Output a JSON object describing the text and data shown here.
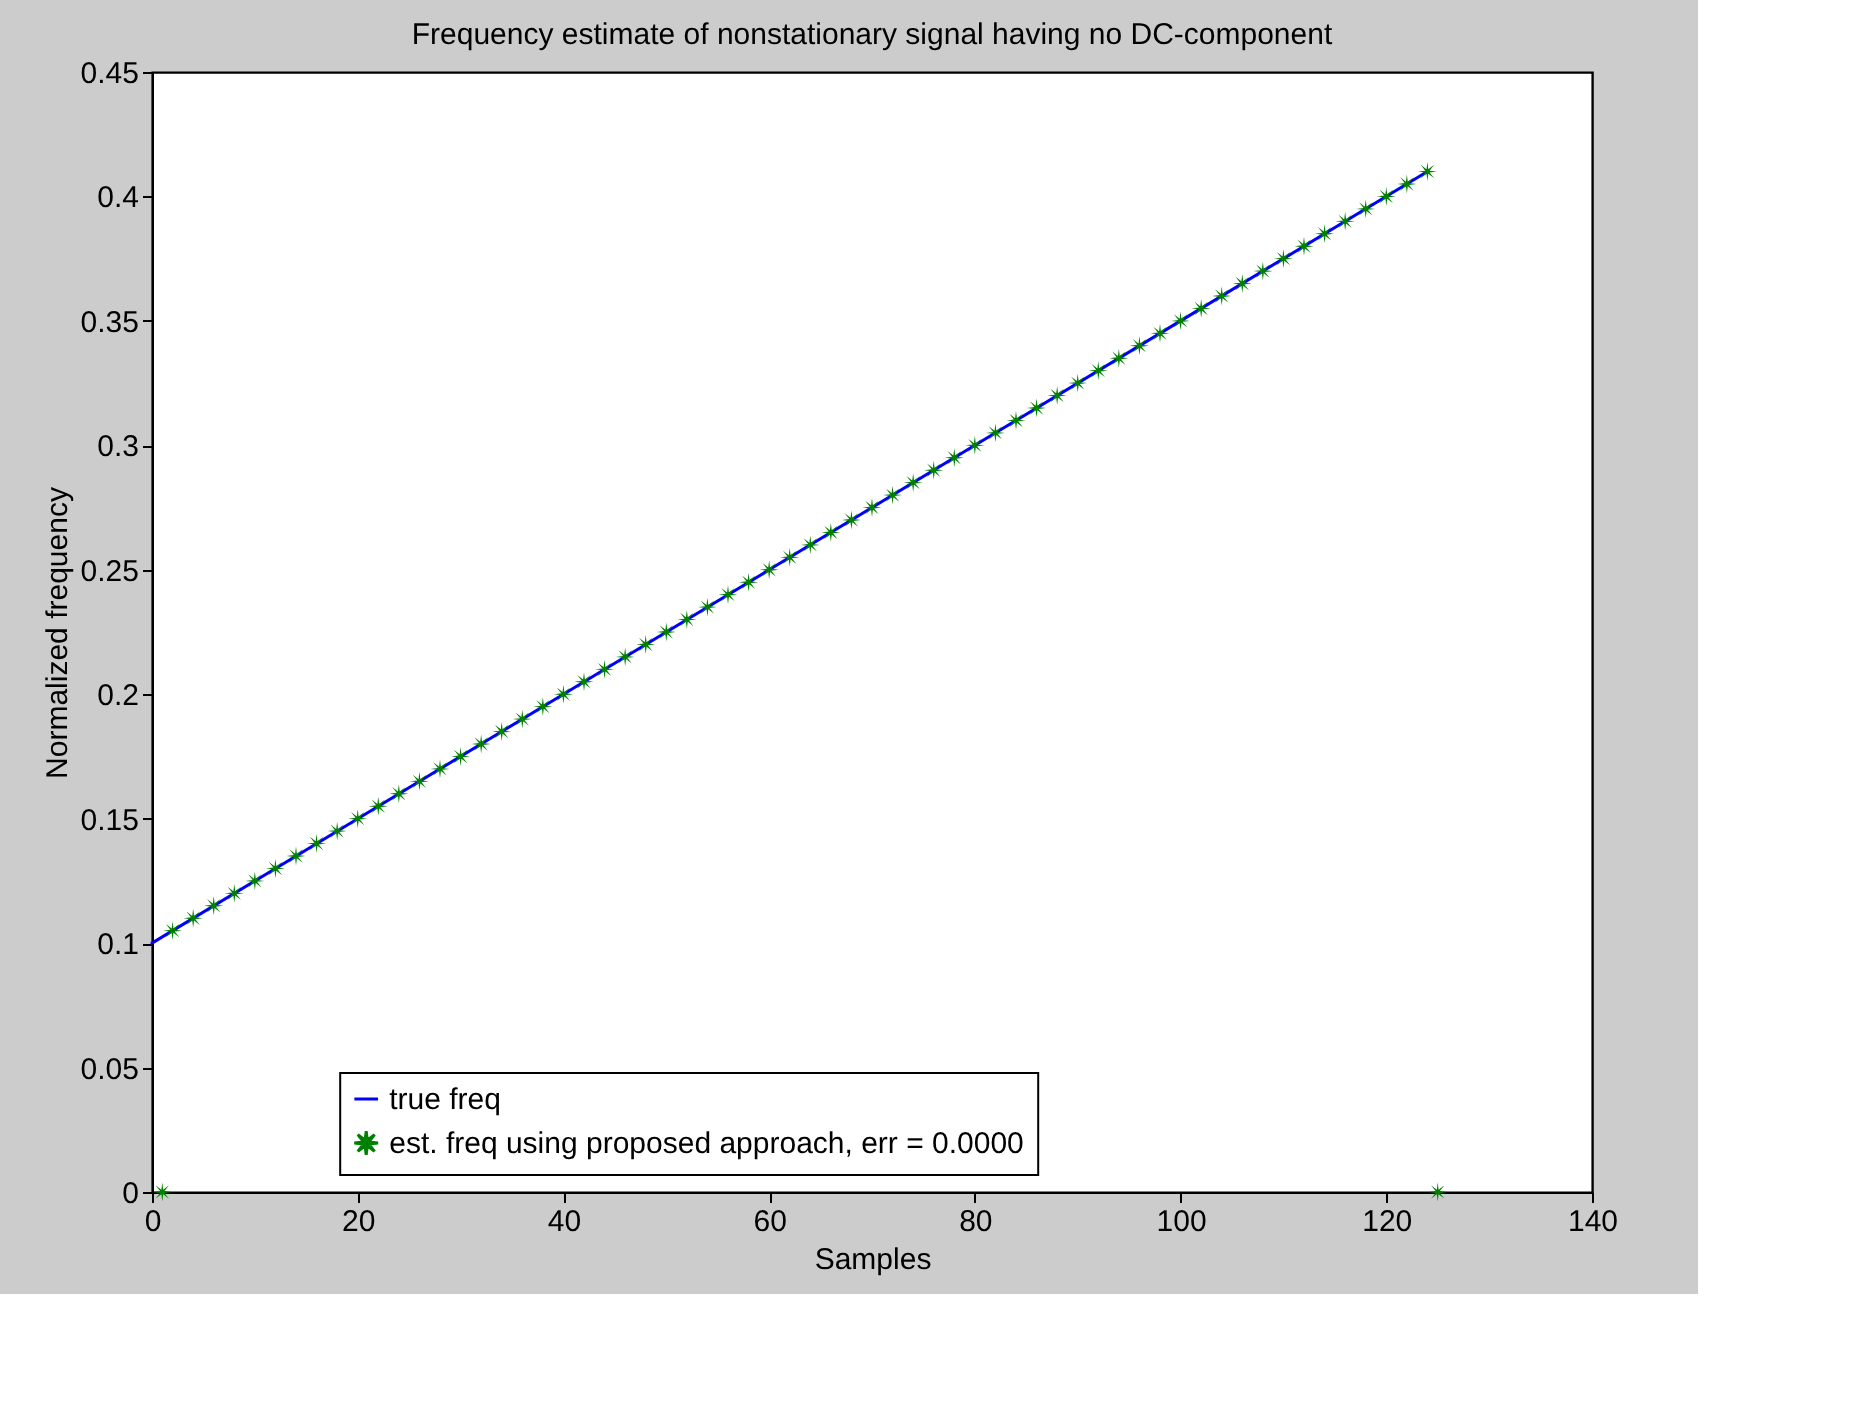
{
  "chart_data": {
    "type": "line",
    "title": "Frequency estimate of nonstationary signal having no DC-component",
    "xlabel": "Samples",
    "ylabel": "Normalized frequency",
    "xlim": [
      0,
      140
    ],
    "xticks": [
      0,
      20,
      40,
      60,
      80,
      100,
      120,
      140
    ],
    "ylim": [
      0,
      0.45
    ],
    "yticks": [
      0,
      0.05,
      0.1,
      0.15,
      0.2,
      0.25,
      0.3,
      0.35,
      0.4,
      0.45
    ],
    "grid": false,
    "legend": "bottom",
    "series": [
      {
        "name": "true freq",
        "color": "#0000ff",
        "marker": "none",
        "line_style": "solid",
        "x": [
          0,
          20,
          40,
          60,
          80,
          100,
          124
        ],
        "values": [
          0.1,
          0.15,
          0.2,
          0.25,
          0.3,
          0.35,
          0.41
        ]
      },
      {
        "name": "est. freq using proposed approach, err = 0.0000",
        "type": "scatter",
        "color": "#008000",
        "marker": "star",
        "x": [
          1,
          2,
          4,
          6,
          8,
          10,
          12,
          14,
          16,
          18,
          20,
          22,
          24,
          26,
          28,
          30,
          32,
          34,
          36,
          38,
          40,
          42,
          44,
          46,
          48,
          50,
          52,
          54,
          56,
          58,
          60,
          62,
          64,
          66,
          68,
          70,
          72,
          74,
          76,
          78,
          80,
          82,
          84,
          86,
          88,
          90,
          92,
          94,
          96,
          98,
          100,
          102,
          104,
          106,
          108,
          110,
          112,
          114,
          116,
          118,
          120,
          122,
          124,
          125
        ],
        "values": [
          0,
          0.105,
          0.11,
          0.115,
          0.12,
          0.125,
          0.13,
          0.135,
          0.14,
          0.145,
          0.15,
          0.155,
          0.16,
          0.165,
          0.17,
          0.175,
          0.18,
          0.185,
          0.19,
          0.195,
          0.2,
          0.205,
          0.21,
          0.215,
          0.22,
          0.225,
          0.23,
          0.235,
          0.24,
          0.245,
          0.25,
          0.255,
          0.26,
          0.265,
          0.27,
          0.275,
          0.28,
          0.285,
          0.29,
          0.295,
          0.3,
          0.305,
          0.31,
          0.315,
          0.32,
          0.325,
          0.33,
          0.335,
          0.34,
          0.345,
          0.35,
          0.355,
          0.36,
          0.365,
          0.37,
          0.375,
          0.38,
          0.385,
          0.39,
          0.395,
          0.4,
          0.405,
          0.41,
          0
        ]
      }
    ]
  }
}
